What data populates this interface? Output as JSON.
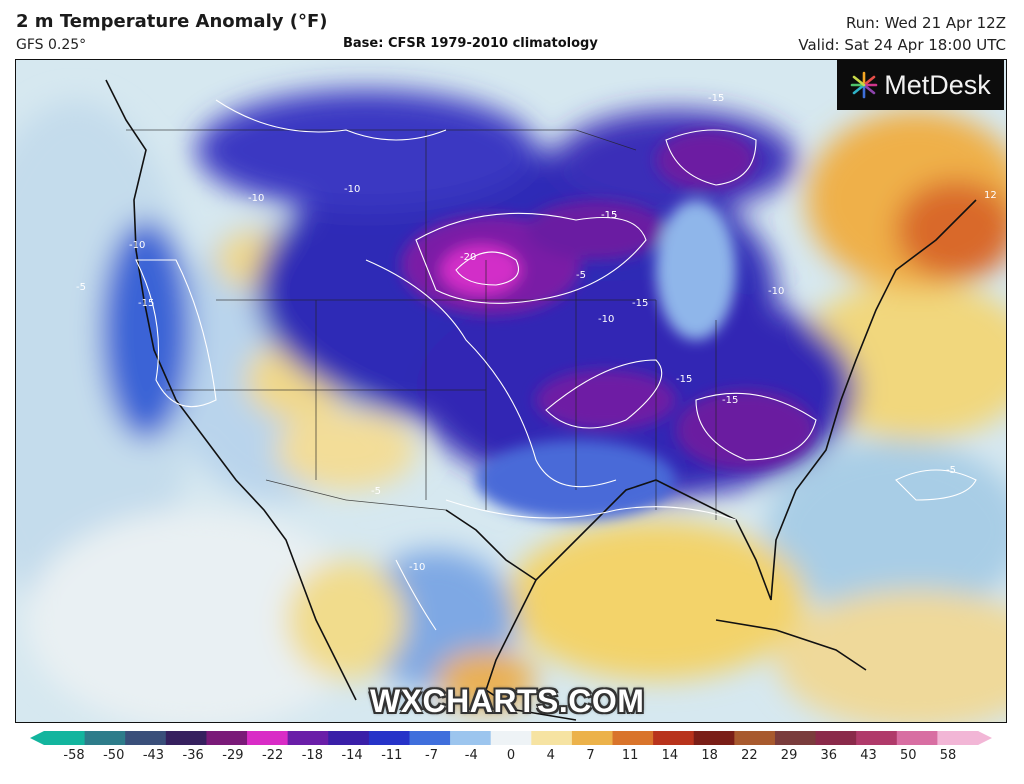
{
  "header": {
    "title": "2 m Temperature Anomaly (°F)",
    "model": "GFS 0.25°",
    "base": "Base: CFSR 1979-2010 climatology",
    "run": "Run: Wed 21 Apr 12Z",
    "valid": "Valid: Sat 24 Apr 18:00 UTC"
  },
  "branding": {
    "logo": "MetDesk",
    "watermark": "WXCHARTS.COM"
  },
  "map": {
    "contour_labels": [
      "-20",
      "-15",
      "-15",
      "-15",
      "-15",
      "-15",
      "-15",
      "-15",
      "-10",
      "-10",
      "-10",
      "-10",
      "-10",
      "-10",
      "-5",
      "-5",
      "-5",
      "-5",
      "12"
    ]
  },
  "colorbar": {
    "ticks": [
      "-58",
      "-50",
      "-43",
      "-36",
      "-29",
      "-22",
      "-18",
      "-14",
      "-11",
      "-7",
      "-4",
      "0",
      "4",
      "7",
      "11",
      "14",
      "18",
      "22",
      "29",
      "36",
      "43",
      "50",
      "58"
    ],
    "colors": [
      "#13b59e",
      "#2e7c8a",
      "#3a4f7a",
      "#36205e",
      "#7a1a78",
      "#d92cc6",
      "#6a1ea8",
      "#3a1fa8",
      "#2633c8",
      "#3f6fdc",
      "#9cc5ee",
      "#eef3f6",
      "#f6e3a2",
      "#ecb24a",
      "#d9742b",
      "#b8331c",
      "#7a1e17",
      "#a85a2e",
      "#7a3c3c",
      "#8a2a4a",
      "#b03a6a",
      "#d86ea2",
      "#f2b6d6"
    ]
  }
}
